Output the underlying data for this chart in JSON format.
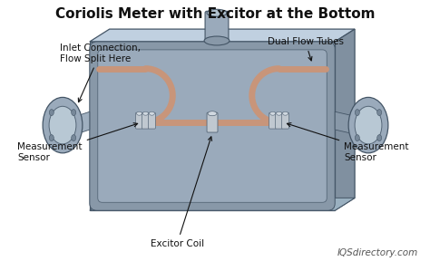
{
  "title": "Coriolis Meter with Excitor at the Bottom",
  "title_fontsize": 11,
  "title_fontweight": "bold",
  "labels": {
    "inlet": "Inlet Connection,\nFlow Split Here",
    "dual_flow": "Dual Flow Tubes",
    "measurement_left": "Measurement\nSensor",
    "measurement_right": "Measurement\nSensor",
    "excitor": "Excitor Coil",
    "watermark": "IQSdirectory.com"
  },
  "colors": {
    "bg": "#e8e8e8",
    "white": "#ffffff",
    "body_front": "#a8b8c8",
    "body_top": "#c0d0e0",
    "body_right": "#8090a0",
    "body_inner": "#8898a8",
    "body_inner2": "#9aaabb",
    "tube": "#c8957a",
    "flange_outer": "#9aaabb",
    "flange_inner": "#b8c8d4",
    "sensor": "#c0c8d0",
    "edge": "#445566",
    "text": "#111111",
    "watermark": "#555555",
    "arrow": "#111111"
  }
}
